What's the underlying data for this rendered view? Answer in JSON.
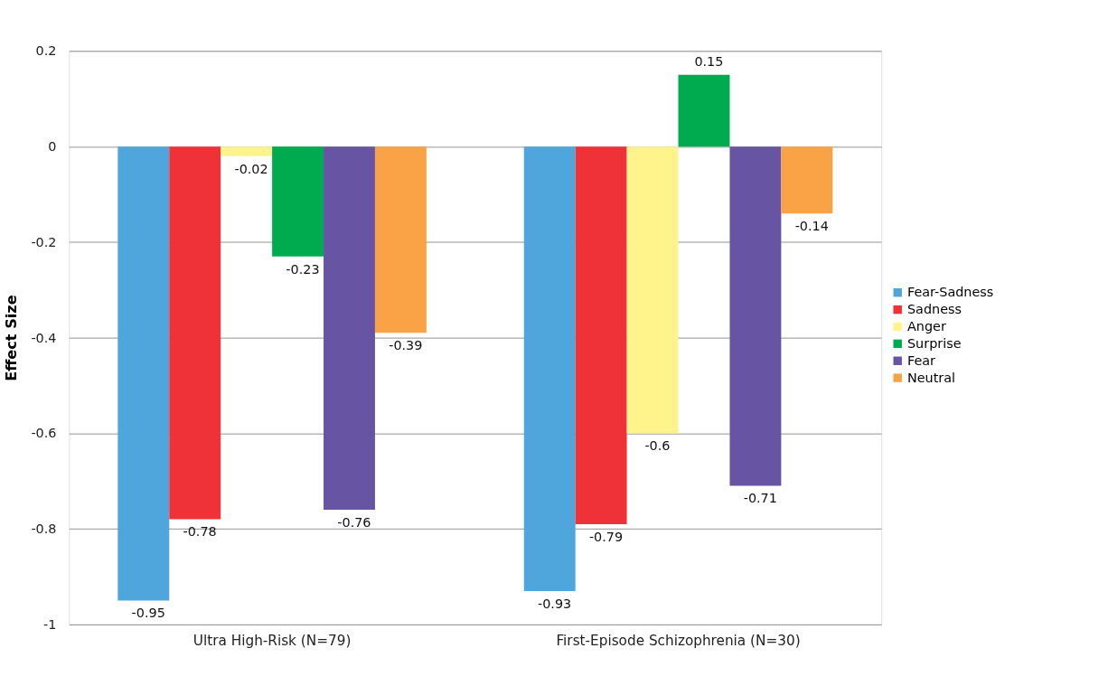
{
  "chart_data": {
    "type": "bar",
    "ylabel": "Effect Size",
    "categories": [
      "Ultra High-Risk (N=79)",
      "First-Episode Schizophrenia (N=30)"
    ],
    "series": [
      {
        "name": "Fear-Sadness",
        "color": "#4ea6dc",
        "values": [
          -0.95,
          -0.93
        ]
      },
      {
        "name": "Sadness",
        "color": "#ef3237",
        "values": [
          -0.78,
          -0.79
        ]
      },
      {
        "name": "Anger",
        "color": "#fff48c",
        "values": [
          -0.02,
          -0.6
        ]
      },
      {
        "name": "Surprise",
        "color": "#00aa4f",
        "values": [
          -0.23,
          0.15
        ]
      },
      {
        "name": "Fear",
        "color": "#6755a3",
        "values": [
          -0.76,
          -0.71
        ]
      },
      {
        "name": "Neutral",
        "color": "#f9a346",
        "values": [
          -0.39,
          -0.14
        ]
      }
    ],
    "ylim": [
      -1,
      0.2
    ],
    "yticks": [
      -1,
      -0.8,
      -0.6,
      -0.4,
      -0.2,
      0,
      0.2
    ],
    "grid": "y",
    "legend": "right",
    "data_labels": true
  }
}
